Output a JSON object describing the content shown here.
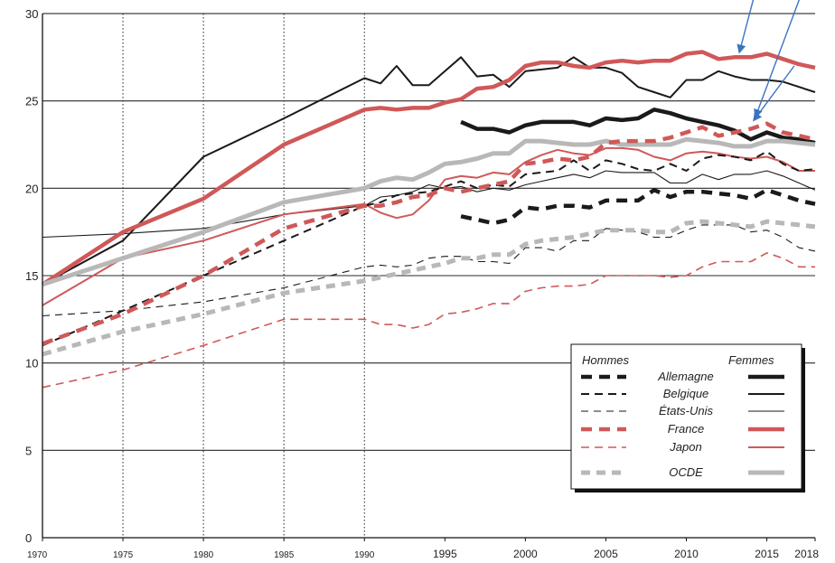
{
  "chart_data": {
    "type": "line",
    "ylim": [
      0,
      30
    ],
    "xlim": [
      1970,
      2018
    ],
    "yticks": [
      0,
      5,
      10,
      15,
      20,
      25,
      30
    ],
    "xticks": [
      {
        "value": 1970,
        "label": "1970",
        "small": true
      },
      {
        "value": 1975,
        "label": "1975",
        "small": true
      },
      {
        "value": 1980,
        "label": "1980",
        "small": true
      },
      {
        "value": 1985,
        "label": "1985",
        "small": true
      },
      {
        "value": 1990,
        "label": "1990",
        "small": true
      },
      {
        "value": 1995,
        "label": "1995",
        "small": false
      },
      {
        "value": 2000,
        "label": "2000",
        "small": false
      },
      {
        "value": 2005,
        "label": "2005",
        "small": false
      },
      {
        "value": 2010,
        "label": "2010",
        "small": false
      },
      {
        "value": 2015,
        "label": "2015",
        "small": false
      },
      {
        "value": 2018,
        "label": "2018",
        "small": false
      }
    ],
    "dotted_vlines": [
      1975,
      1980,
      1985,
      1990
    ],
    "grid": "horizontal",
    "legend": {
      "position": "bottom-right",
      "header_men": "Hommes",
      "header_women": "Femmes",
      "entries": [
        "Allemagne",
        "Belgique",
        "États-Unis",
        "France",
        "Japon",
        "OCDE"
      ]
    },
    "colors": {
      "black": "#1a1a1a",
      "red": "#d05858",
      "grey": "#b8b8b8",
      "arrow": "#3b73c0"
    },
    "series": [
      {
        "name": "Allemagne",
        "group": "Femmes",
        "color": "black",
        "width": 4.5,
        "dash": "",
        "x": [
          1996,
          1997,
          1998,
          1999,
          2000,
          2001,
          2002,
          2003,
          2004,
          2005,
          2006,
          2007,
          2008,
          2009,
          2010,
          2011,
          2012,
          2013,
          2014,
          2015,
          2016,
          2017,
          2018
        ],
        "y": [
          23.8,
          23.4,
          23.4,
          23.2,
          23.6,
          23.8,
          23.8,
          23.8,
          23.6,
          24.0,
          23.9,
          24.0,
          24.5,
          24.3,
          24.0,
          23.8,
          23.6,
          23.3,
          22.8,
          23.2,
          22.9,
          22.8,
          22.6
        ]
      },
      {
        "name": "Belgique",
        "group": "Femmes",
        "color": "black",
        "width": 2,
        "dash": "",
        "x": [
          1970,
          1975,
          1980,
          1985,
          1990,
          1991,
          1992,
          1993,
          1994,
          1995,
          1996,
          1997,
          1998,
          1999,
          2000,
          2001,
          2002,
          2003,
          2004,
          2005,
          2006,
          2007,
          2008,
          2009,
          2010,
          2011,
          2012,
          2013,
          2014,
          2015,
          2016,
          2017,
          2018
        ],
        "y": [
          14.5,
          17.0,
          21.8,
          24.0,
          26.3,
          26.0,
          27.0,
          25.9,
          25.9,
          26.7,
          27.5,
          26.4,
          26.5,
          25.8,
          26.7,
          26.8,
          26.9,
          27.5,
          26.9,
          26.9,
          26.6,
          25.8,
          25.5,
          25.2,
          26.2,
          26.2,
          26.7,
          26.4,
          26.2,
          26.2,
          26.1,
          25.8,
          25.5
        ]
      },
      {
        "name": "États-Unis",
        "group": "Femmes",
        "color": "black",
        "width": 1.1,
        "dash": "",
        "x": [
          1970,
          1975,
          1980,
          1985,
          1990,
          1991,
          1992,
          1993,
          1994,
          1995,
          1996,
          1997,
          1998,
          1999,
          2000,
          2001,
          2002,
          2003,
          2004,
          2005,
          2006,
          2007,
          2008,
          2009,
          2010,
          2011,
          2012,
          2013,
          2014,
          2015,
          2016,
          2017,
          2018
        ],
        "y": [
          17.2,
          17.4,
          17.7,
          18.5,
          19.0,
          19.5,
          19.6,
          19.8,
          20.2,
          20.0,
          20.1,
          19.8,
          20.0,
          19.9,
          20.2,
          20.4,
          20.6,
          20.8,
          20.6,
          21.0,
          20.9,
          20.9,
          20.9,
          20.3,
          20.3,
          20.8,
          20.5,
          20.8,
          20.8,
          21.0,
          20.7,
          20.3,
          19.9
        ]
      },
      {
        "name": "France",
        "group": "Femmes",
        "color": "red",
        "width": 4.5,
        "dash": "",
        "x": [
          1970,
          1975,
          1980,
          1985,
          1990,
          1991,
          1992,
          1993,
          1994,
          1995,
          1996,
          1997,
          1998,
          1999,
          2000,
          2001,
          2002,
          2003,
          2004,
          2005,
          2006,
          2007,
          2008,
          2009,
          2010,
          2011,
          2012,
          2013,
          2014,
          2015,
          2016,
          2017,
          2018
        ],
        "y": [
          14.5,
          17.5,
          19.4,
          22.5,
          24.5,
          24.6,
          24.5,
          24.6,
          24.6,
          24.9,
          25.1,
          25.7,
          25.8,
          26.2,
          27.0,
          27.2,
          27.2,
          27.0,
          26.9,
          27.2,
          27.3,
          27.2,
          27.3,
          27.3,
          27.7,
          27.8,
          27.4,
          27.5,
          27.5,
          27.7,
          27.4,
          27.1,
          26.9
        ]
      },
      {
        "name": "Japon",
        "group": "Femmes",
        "color": "red",
        "width": 2,
        "dash": "",
        "x": [
          1970,
          1975,
          1980,
          1985,
          1990,
          1991,
          1992,
          1993,
          1994,
          1995,
          1996,
          1997,
          1998,
          1999,
          2000,
          2001,
          2002,
          2003,
          2004,
          2005,
          2006,
          2007,
          2008,
          2009,
          2010,
          2011,
          2012,
          2013,
          2014,
          2015,
          2016,
          2017,
          2018
        ],
        "y": [
          13.3,
          16.0,
          17.0,
          18.5,
          19.1,
          18.6,
          18.3,
          18.5,
          19.3,
          20.5,
          20.7,
          20.6,
          20.9,
          20.8,
          21.5,
          21.9,
          22.2,
          22.0,
          21.9,
          22.3,
          22.3,
          22.2,
          21.8,
          21.6,
          22.0,
          22.1,
          22.0,
          21.8,
          21.7,
          21.8,
          21.5,
          21.0,
          21.0
        ]
      },
      {
        "name": "OCDE",
        "group": "Femmes",
        "color": "grey",
        "width": 5,
        "dash": "",
        "x": [
          1970,
          1975,
          1980,
          1985,
          1990,
          1991,
          1992,
          1993,
          1994,
          1995,
          1996,
          1997,
          1998,
          1999,
          2000,
          2001,
          2002,
          2003,
          2004,
          2005,
          2006,
          2007,
          2008,
          2009,
          2010,
          2011,
          2012,
          2013,
          2014,
          2015,
          2016,
          2017,
          2018
        ],
        "y": [
          14.5,
          16.0,
          17.5,
          19.2,
          20.0,
          20.4,
          20.6,
          20.5,
          20.9,
          21.4,
          21.5,
          21.7,
          22.0,
          22.0,
          22.7,
          22.7,
          22.6,
          22.5,
          22.5,
          22.7,
          22.5,
          22.5,
          22.5,
          22.5,
          22.8,
          22.7,
          22.6,
          22.4,
          22.4,
          22.7,
          22.7,
          22.6,
          22.5
        ]
      },
      {
        "name": "Allemagne",
        "group": "Hommes",
        "color": "black",
        "width": 4.5,
        "dash": "12 8",
        "x": [
          1996,
          1997,
          1998,
          1999,
          2000,
          2001,
          2002,
          2003,
          2004,
          2005,
          2006,
          2007,
          2008,
          2009,
          2010,
          2011,
          2012,
          2013,
          2014,
          2015,
          2016,
          2017,
          2018
        ],
        "y": [
          18.4,
          18.2,
          18.0,
          18.2,
          18.9,
          18.8,
          19.0,
          19.0,
          18.9,
          19.3,
          19.3,
          19.3,
          19.9,
          19.5,
          19.8,
          19.8,
          19.7,
          19.6,
          19.4,
          19.9,
          19.6,
          19.3,
          19.1
        ]
      },
      {
        "name": "Belgique",
        "group": "Hommes",
        "color": "black",
        "width": 2,
        "dash": "9 6",
        "x": [
          1970,
          1975,
          1980,
          1985,
          1990,
          1991,
          1992,
          1993,
          1994,
          1995,
          1996,
          1997,
          1998,
          1999,
          2000,
          2001,
          2002,
          2003,
          2004,
          2005,
          2006,
          2007,
          2008,
          2009,
          2010,
          2011,
          2012,
          2013,
          2014,
          2015,
          2016,
          2017,
          2018
        ],
        "y": [
          11.0,
          13.0,
          15.0,
          17.0,
          19.0,
          19.2,
          19.6,
          19.7,
          19.8,
          20.1,
          20.4,
          20.0,
          20.2,
          20.1,
          20.8,
          20.9,
          21.0,
          21.6,
          21.0,
          21.6,
          21.4,
          21.1,
          21.0,
          21.4,
          21.0,
          21.7,
          21.9,
          21.8,
          21.6,
          22.1,
          21.4,
          21.0,
          21.1
        ]
      },
      {
        "name": "États-Unis",
        "group": "Hommes",
        "color": "black",
        "width": 1.1,
        "dash": "8 6",
        "x": [
          1970,
          1975,
          1980,
          1985,
          1990,
          1991,
          1992,
          1993,
          1994,
          1995,
          1996,
          1997,
          1998,
          1999,
          2000,
          2001,
          2002,
          2003,
          2004,
          2005,
          2006,
          2007,
          2008,
          2009,
          2010,
          2011,
          2012,
          2013,
          2014,
          2015,
          2016,
          2017,
          2018
        ],
        "y": [
          12.7,
          13.0,
          13.5,
          14.3,
          15.5,
          15.6,
          15.5,
          15.6,
          16.0,
          16.1,
          16.1,
          15.8,
          15.8,
          15.7,
          16.6,
          16.6,
          16.4,
          17.0,
          17.0,
          17.7,
          17.6,
          17.5,
          17.2,
          17.2,
          17.6,
          17.9,
          17.9,
          17.9,
          17.5,
          17.6,
          17.2,
          16.6,
          16.4
        ]
      },
      {
        "name": "France",
        "group": "Hommes",
        "color": "red",
        "width": 4.5,
        "dash": "12 8",
        "x": [
          1970,
          1975,
          1980,
          1985,
          1990,
          1991,
          1992,
          1993,
          1994,
          1995,
          1996,
          1997,
          1998,
          1999,
          2000,
          2001,
          2002,
          2003,
          2004,
          2005,
          2006,
          2007,
          2008,
          2009,
          2010,
          2011,
          2012,
          2013,
          2014,
          2015,
          2016,
          2017,
          2018
        ],
        "y": [
          11.1,
          12.8,
          15.0,
          17.7,
          19.0,
          19.0,
          19.2,
          19.5,
          19.6,
          20.0,
          19.8,
          20.0,
          20.2,
          20.4,
          21.4,
          21.5,
          21.7,
          21.6,
          21.8,
          22.6,
          22.7,
          22.7,
          22.7,
          22.9,
          23.2,
          23.5,
          23.0,
          23.2,
          23.4,
          23.7,
          23.2,
          23.0,
          22.8
        ]
      },
      {
        "name": "Japon",
        "group": "Hommes",
        "color": "red",
        "width": 1.6,
        "dash": "9 6",
        "x": [
          1970,
          1975,
          1980,
          1985,
          1990,
          1991,
          1992,
          1993,
          1994,
          1995,
          1996,
          1997,
          1998,
          1999,
          2000,
          2001,
          2002,
          2003,
          2004,
          2005,
          2006,
          2007,
          2008,
          2009,
          2010,
          2011,
          2012,
          2013,
          2014,
          2015,
          2016,
          2017,
          2018
        ],
        "y": [
          8.6,
          9.6,
          11.0,
          12.5,
          12.5,
          12.2,
          12.2,
          12.0,
          12.2,
          12.8,
          12.9,
          13.1,
          13.4,
          13.4,
          14.1,
          14.3,
          14.4,
          14.4,
          14.5,
          15.0,
          15.0,
          15.0,
          15.0,
          14.9,
          15.0,
          15.5,
          15.8,
          15.8,
          15.8,
          16.3,
          16.0,
          15.5,
          15.5
        ]
      },
      {
        "name": "OCDE",
        "group": "Hommes",
        "color": "grey",
        "width": 5,
        "dash": "10 7",
        "x": [
          1970,
          1975,
          1980,
          1985,
          1990,
          1991,
          1992,
          1993,
          1994,
          1995,
          1996,
          1997,
          1998,
          1999,
          2000,
          2001,
          2002,
          2003,
          2004,
          2005,
          2006,
          2007,
          2008,
          2009,
          2010,
          2011,
          2012,
          2013,
          2014,
          2015,
          2016,
          2017,
          2018
        ],
        "y": [
          10.5,
          11.8,
          12.8,
          14.0,
          14.7,
          14.9,
          15.1,
          15.3,
          15.5,
          15.7,
          16.0,
          16.0,
          16.2,
          16.2,
          16.8,
          17.0,
          17.1,
          17.2,
          17.4,
          17.6,
          17.6,
          17.6,
          17.5,
          17.5,
          18.0,
          18.1,
          18.0,
          17.9,
          17.8,
          18.1,
          18.0,
          17.9,
          17.8
        ]
      }
    ],
    "annotations": [
      {
        "type": "arrow",
        "from": [
          2014.5,
          32
        ],
        "to": [
          2013.3,
          27.8
        ]
      },
      {
        "type": "arrow",
        "from": [
          2017.5,
          32
        ],
        "to": [
          2014.3,
          24.1
        ]
      },
      {
        "type": "arrow",
        "from": [
          2016.7,
          27
        ],
        "to": [
          2014.2,
          23.9
        ]
      }
    ]
  }
}
